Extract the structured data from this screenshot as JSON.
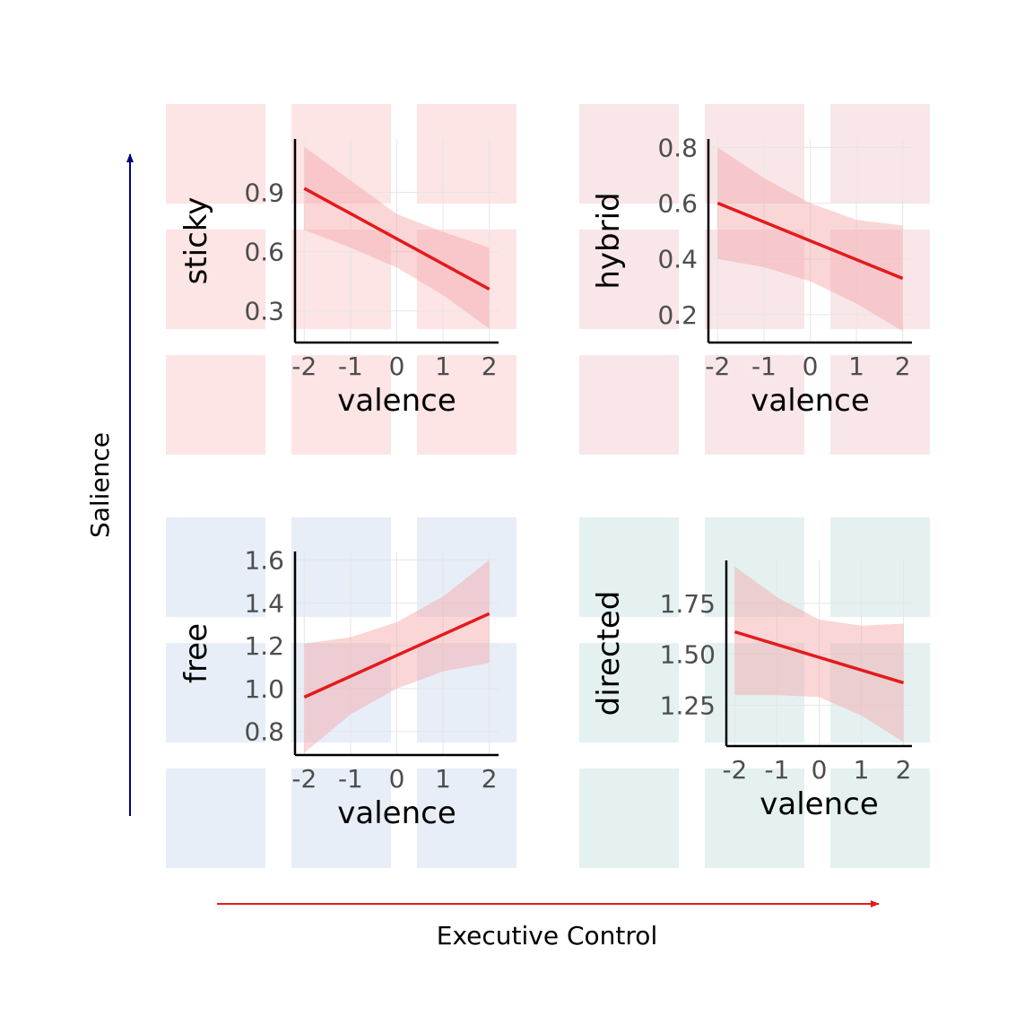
{
  "figure": {
    "xaxis_title": "Executive Control",
    "yaxis_title": "Salience",
    "colors": {
      "executive_arrow": "#e41a1c",
      "salience_arrow": "#000080",
      "line": "#e41a1c",
      "ribbon": "#f4a3a6"
    }
  },
  "chart_data": [
    {
      "type": "line",
      "panel": "top-left",
      "background_color": "#fde4e5",
      "ylabel": "sticky",
      "xlabel": "valence",
      "x": [
        -2,
        2
      ],
      "series": [
        {
          "values": [
            0.92,
            0.41
          ]
        }
      ],
      "ribbon": {
        "x": [
          -2,
          -1,
          0,
          1,
          2
        ],
        "lower": [
          0.71,
          0.62,
          0.52,
          0.38,
          0.21
        ],
        "upper": [
          1.13,
          0.96,
          0.79,
          0.7,
          0.62
        ]
      },
      "xlim": [
        -2.2,
        2.2
      ],
      "ylim": [
        0.14,
        1.17
      ],
      "xticks": [
        -2,
        -1,
        0,
        1,
        2
      ],
      "xtick_labels": [
        "-2",
        "-1",
        "0",
        "1",
        "2"
      ],
      "yticks": [
        0.3,
        0.6,
        0.9
      ],
      "ytick_labels": [
        "0.3",
        "0.6",
        "0.9"
      ],
      "grid": true
    },
    {
      "type": "line",
      "panel": "top-right",
      "background_color": "#f9e6e9",
      "ylabel": "hybrid",
      "xlabel": "valence",
      "x": [
        -2,
        2
      ],
      "series": [
        {
          "values": [
            0.6,
            0.33
          ]
        }
      ],
      "ribbon": {
        "x": [
          -2,
          -1,
          0,
          1,
          2
        ],
        "lower": [
          0.4,
          0.37,
          0.32,
          0.24,
          0.14
        ],
        "upper": [
          0.8,
          0.69,
          0.6,
          0.54,
          0.52
        ]
      },
      "xlim": [
        -2.2,
        2.2
      ],
      "ylim": [
        0.1,
        0.83
      ],
      "xticks": [
        -2,
        -1,
        0,
        1,
        2
      ],
      "xtick_labels": [
        "-2",
        "-1",
        "0",
        "1",
        "2"
      ],
      "yticks": [
        0.2,
        0.4,
        0.6,
        0.8
      ],
      "ytick_labels": [
        "0.2",
        "0.4",
        "0.6",
        "0.8"
      ],
      "grid": true
    },
    {
      "type": "line",
      "panel": "bottom-left",
      "background_color": "#e7eef7",
      "ylabel": "free",
      "xlabel": "valence",
      "x": [
        -2,
        2
      ],
      "series": [
        {
          "values": [
            0.96,
            1.35
          ]
        }
      ],
      "ribbon": {
        "x": [
          -2,
          -1,
          0,
          1,
          2
        ],
        "lower": [
          0.7,
          0.88,
          1.0,
          1.08,
          1.12
        ],
        "upper": [
          1.21,
          1.24,
          1.31,
          1.43,
          1.6
        ]
      },
      "xlim": [
        -2.2,
        2.2
      ],
      "ylim": [
        0.69,
        1.64
      ],
      "xticks": [
        -2,
        -1,
        0,
        1,
        2
      ],
      "xtick_labels": [
        "-2",
        "-1",
        "0",
        "1",
        "2"
      ],
      "yticks": [
        0.8,
        1.0,
        1.2,
        1.4,
        1.6
      ],
      "ytick_labels": [
        "0.8",
        "1.0",
        "1.2",
        "1.4",
        "1.6"
      ],
      "grid": true
    },
    {
      "type": "line",
      "panel": "bottom-right",
      "background_color": "#e4f1f0",
      "ylabel": "directed",
      "xlabel": "valence",
      "x": [
        -2,
        2
      ],
      "series": [
        {
          "values": [
            1.61,
            1.36
          ]
        }
      ],
      "ribbon": {
        "x": [
          -2,
          -1,
          0,
          1,
          2
        ],
        "lower": [
          1.3,
          1.3,
          1.29,
          1.2,
          1.07
        ],
        "upper": [
          1.93,
          1.78,
          1.67,
          1.64,
          1.65
        ]
      },
      "xlim": [
        -2.2,
        2.2
      ],
      "ylim": [
        1.05,
        1.96
      ],
      "xticks": [
        -2,
        -1,
        0,
        1,
        2
      ],
      "xtick_labels": [
        "-2",
        "-1",
        "0",
        "1",
        "2"
      ],
      "yticks": [
        1.25,
        1.5,
        1.75
      ],
      "ytick_labels": [
        "1.25",
        "1.50",
        "1.75"
      ],
      "grid": true
    }
  ]
}
